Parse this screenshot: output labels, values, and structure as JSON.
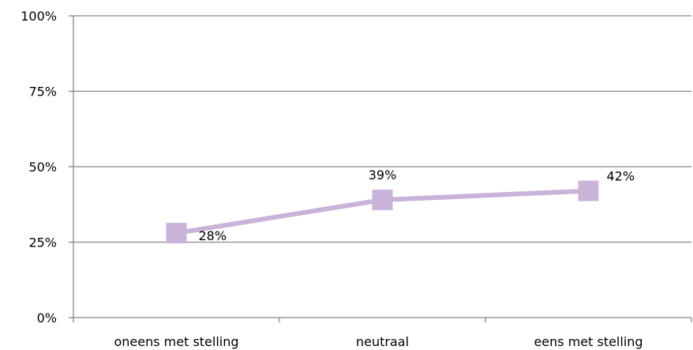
{
  "chart_data": {
    "type": "line",
    "title": "",
    "xlabel": "",
    "ylabel": "",
    "categories": [
      "oneens met stelling",
      "neutraal",
      "eens met stelling"
    ],
    "series": [
      {
        "values": [
          0.28,
          0.39,
          0.42
        ],
        "labels": [
          "28%",
          "39%",
          "42%"
        ]
      }
    ],
    "ylim": [
      0,
      1
    ],
    "y_ticks": [
      {
        "value": 0,
        "label": "0%"
      },
      {
        "value": 0.25,
        "label": "25%"
      },
      {
        "value": 0.5,
        "label": "50%"
      },
      {
        "value": 0.75,
        "label": "75%"
      },
      {
        "value": 1,
        "label": "100%"
      }
    ],
    "grid": true,
    "legend": "none",
    "colors": {
      "series": "#c9b3d9",
      "grid": "#868686",
      "axis": "#868686"
    },
    "marker": "square"
  }
}
